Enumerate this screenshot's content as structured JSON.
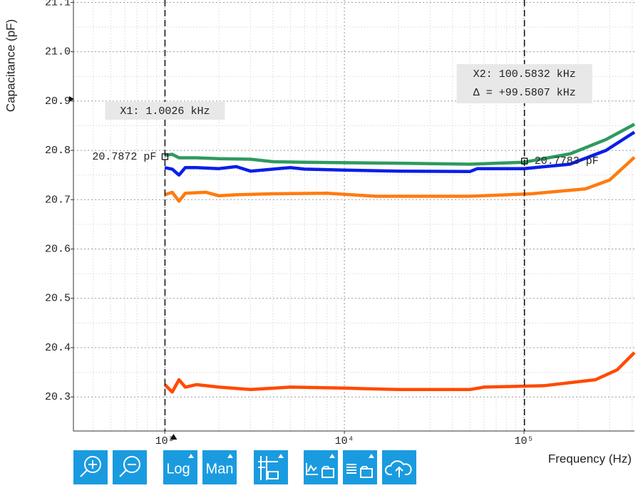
{
  "chart_data": {
    "type": "line",
    "y_label": "Capacitance (pF)",
    "x_label": "Frequency (Hz)",
    "log_x": true,
    "grid": true,
    "minor_grid": true,
    "xlim": [
      310,
      412000
    ],
    "ylim": [
      20.231,
      21.102
    ],
    "xticks": [
      {
        "value": 1000,
        "label": "10³"
      },
      {
        "value": 10000,
        "label": "10⁴"
      },
      {
        "value": 100000,
        "label": "10⁵"
      }
    ],
    "yticks": [
      20.3,
      20.4,
      20.5,
      20.6,
      20.7,
      20.8,
      20.9,
      {
        "value": 21,
        "label": "21.0"
      },
      21.1
    ],
    "series": [
      {
        "color": "#2e9a5f",
        "x": [
          1000,
          1100,
          1200,
          1500,
          2000,
          3000,
          4000,
          6000,
          10000,
          20000,
          50000,
          100000,
          181000,
          286000,
          412000
        ],
        "values": [
          20.79,
          20.792,
          20.785,
          20.785,
          20.783,
          20.782,
          20.777,
          20.776,
          20.775,
          20.774,
          20.772,
          20.776,
          20.793,
          20.822,
          20.853
        ]
      },
      {
        "color": "#0a1ee8",
        "x": [
          1000,
          1100,
          1200,
          1300,
          1500,
          2000,
          2500,
          3000,
          4000,
          5000,
          6000,
          10000,
          20000,
          50000,
          55000,
          100000,
          180000,
          286000,
          412000
        ],
        "values": [
          20.765,
          20.762,
          20.75,
          20.765,
          20.765,
          20.763,
          20.767,
          20.758,
          20.762,
          20.765,
          20.762,
          20.76,
          20.758,
          20.757,
          20.763,
          20.763,
          20.772,
          20.8,
          20.837
        ]
      },
      {
        "color": "#ff7b10",
        "x": [
          1000,
          1100,
          1200,
          1300,
          1700,
          2000,
          2500,
          4000,
          8000,
          15000,
          50000,
          110000,
          220000,
          300000,
          412000
        ],
        "values": [
          20.71,
          20.715,
          20.697,
          20.713,
          20.715,
          20.708,
          20.71,
          20.712,
          20.713,
          20.707,
          20.707,
          20.712,
          20.722,
          20.74,
          20.786
        ]
      },
      {
        "color": "#ff4a00",
        "x": [
          1000,
          1100,
          1200,
          1300,
          1500,
          2000,
          3000,
          5000,
          10000,
          20000,
          50000,
          60000,
          130000,
          250000,
          330000,
          412000
        ],
        "values": [
          20.325,
          20.31,
          20.335,
          20.32,
          20.325,
          20.32,
          20.315,
          20.32,
          20.318,
          20.315,
          20.315,
          20.32,
          20.323,
          20.335,
          20.355,
          20.39
        ]
      }
    ],
    "cursors": [
      {
        "x": 1002.6,
        "label": "X1: 1.0026 kHz",
        "value": 20.7872,
        "value_label": "20.7872 pF"
      },
      {
        "x": 100583.2,
        "label": "X2: 100.5832 kHz",
        "delta_label": "Δ = +99.5807 kHz",
        "value": 20.7783,
        "value_label": "20.7783 pF"
      }
    ]
  },
  "toolbar": {
    "log": "Log",
    "manual": "Man"
  }
}
